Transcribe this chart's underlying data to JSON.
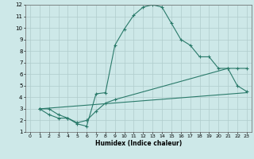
{
  "xlabel": "Humidex (Indice chaleur)",
  "bg_color": "#cde8e8",
  "line_color": "#2a7a6a",
  "grid_color": "#b0cccc",
  "xlim": [
    -0.5,
    23.5
  ],
  "ylim": [
    1,
    12
  ],
  "xticks": [
    0,
    1,
    2,
    3,
    4,
    5,
    6,
    7,
    8,
    9,
    10,
    11,
    12,
    13,
    14,
    15,
    16,
    17,
    18,
    19,
    20,
    21,
    22,
    23
  ],
  "yticks": [
    1,
    2,
    3,
    4,
    5,
    6,
    7,
    8,
    9,
    10,
    11,
    12
  ],
  "line1_x": [
    1,
    2,
    3,
    4,
    5,
    6,
    7,
    8,
    9,
    10,
    11,
    12,
    13,
    14,
    15,
    16,
    17,
    18,
    19,
    20,
    21,
    22,
    23
  ],
  "line1_y": [
    3.0,
    3.0,
    2.5,
    2.2,
    1.7,
    1.5,
    4.3,
    4.4,
    8.5,
    9.9,
    11.1,
    11.8,
    12.0,
    11.8,
    10.4,
    9.0,
    8.5,
    7.5,
    7.5,
    6.5,
    6.5,
    5.0,
    4.5
  ],
  "line2_x": [
    1,
    2,
    3,
    4,
    5,
    6,
    7,
    8,
    9,
    21,
    22,
    23
  ],
  "line2_y": [
    3.0,
    2.5,
    2.2,
    2.2,
    1.8,
    2.0,
    2.8,
    3.5,
    3.8,
    6.5,
    6.5,
    6.5
  ],
  "line3_x": [
    1,
    23
  ],
  "line3_y": [
    3.0,
    4.4
  ]
}
